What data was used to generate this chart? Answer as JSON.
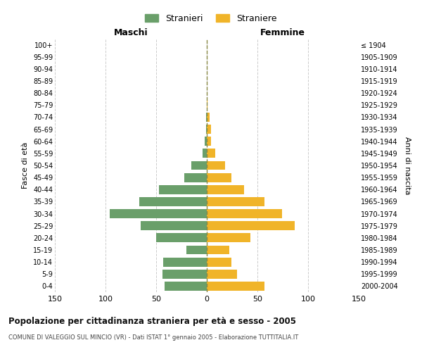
{
  "age_groups": [
    "0-4",
    "5-9",
    "10-14",
    "15-19",
    "20-24",
    "25-29",
    "30-34",
    "35-39",
    "40-44",
    "45-49",
    "50-54",
    "55-59",
    "60-64",
    "65-69",
    "70-74",
    "75-79",
    "80-84",
    "85-89",
    "90-94",
    "95-99",
    "100+"
  ],
  "birth_years": [
    "2000-2004",
    "1995-1999",
    "1990-1994",
    "1985-1989",
    "1980-1984",
    "1975-1979",
    "1970-1974",
    "1965-1969",
    "1960-1964",
    "1955-1959",
    "1950-1954",
    "1945-1949",
    "1940-1944",
    "1935-1939",
    "1930-1934",
    "1925-1929",
    "1920-1924",
    "1915-1919",
    "1910-1914",
    "1905-1909",
    "≤ 1904"
  ],
  "maschi": [
    42,
    44,
    43,
    20,
    50,
    65,
    96,
    67,
    47,
    22,
    15,
    4,
    2,
    1,
    1,
    0,
    0,
    0,
    0,
    0,
    0
  ],
  "femmine": [
    57,
    30,
    24,
    22,
    43,
    87,
    74,
    57,
    37,
    24,
    18,
    8,
    4,
    4,
    3,
    1,
    0,
    0,
    0,
    0,
    0
  ],
  "color_maschi": "#6a9f6a",
  "color_femmine": "#f0b429",
  "title_main": "Popolazione per cittadinanza straniera per età e sesso - 2005",
  "title_sub": "COMUNE DI VALEGGIO SUL MINCIO (VR) - Dati ISTAT 1° gennaio 2005 - Elaborazione TUTTITALIA.IT",
  "legend_maschi": "Stranieri",
  "legend_femmine": "Straniere",
  "label_maschi": "Maschi",
  "label_femmine": "Femmine",
  "ylabel_left": "Fasce di età",
  "ylabel_right": "Anni di nascita",
  "xlim": 150,
  "background_color": "#ffffff",
  "grid_color": "#cccccc"
}
